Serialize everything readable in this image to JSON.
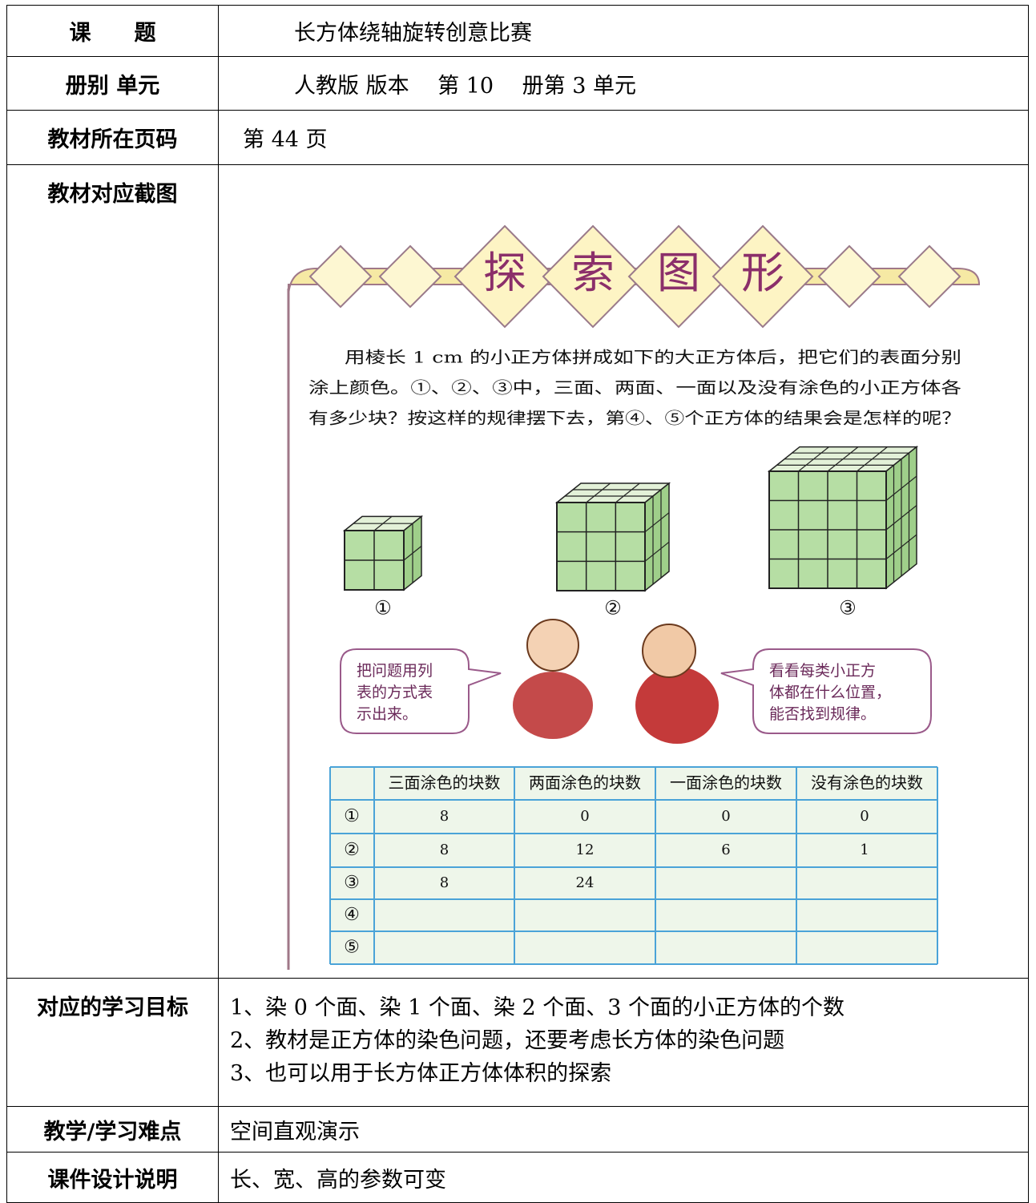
{
  "rows": [
    {
      "label": "课　　题",
      "value": "长方体绕轴旋转创意比赛"
    },
    {
      "label": "册别 单元",
      "value": "人教版 版本　 第 10　 册第 3 单元"
    },
    {
      "label": "教材所在页码",
      "value": "第 44 页"
    },
    {
      "label": "教材对应截图"
    },
    {
      "label": "对应的学习目标",
      "lines": [
        "1、染 0 个面、染 1 个面、染 2 个面、3 个面的小正方体的个数",
        "2、教材是正方体的染色问题，还要考虑长方体的染色问题",
        "3、也可以用于长方体正方体体积的探索"
      ]
    },
    {
      "label": "教学/学习难点",
      "value": "空间直观演示"
    },
    {
      "label": "课件设计说明",
      "value": "长、宽、高的参数可变"
    }
  ],
  "figure": {
    "banner": [
      "探",
      "索",
      "图",
      "形"
    ],
    "paragraph": [
      "用棱长 1 cm 的小正方体拼成如下的大正方体后，把它们的表面分别",
      "涂上颜色。①、②、③中，三面、两面、一面以及没有涂色的小正方体各",
      "有多少块？按这样的规律摆下去，第④、⑤个正方体的结果会是怎样的呢？"
    ],
    "cube_labels": [
      "①",
      "②",
      "③"
    ],
    "bubbles": [
      [
        "把问题用列",
        "表的方式表",
        "示出来。"
      ],
      [
        "看看每类小正方",
        "体都在什么位置，",
        "能否找到规律。"
      ]
    ],
    "table": {
      "header": [
        "三面涂色的块数",
        "两面涂色的块数",
        "一面涂色的块数",
        "没有涂色的块数"
      ],
      "rows": [
        [
          "①",
          8,
          0,
          0,
          0
        ],
        [
          "②",
          8,
          12,
          6,
          1
        ],
        [
          "③",
          8,
          24,
          null,
          null
        ],
        [
          "④",
          null,
          null,
          null,
          null
        ],
        [
          "⑤",
          null,
          null,
          null,
          null
        ]
      ]
    }
  }
}
